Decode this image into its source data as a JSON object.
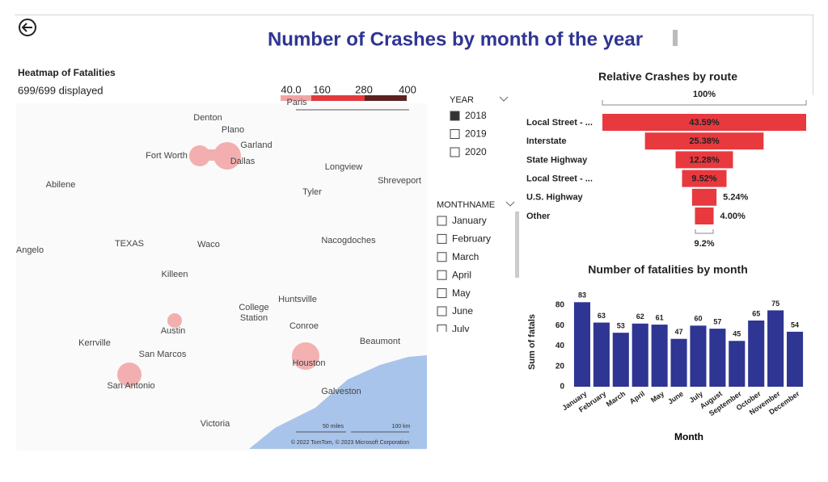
{
  "header": {
    "title": "Number of Crashes by month of the year"
  },
  "heatmap": {
    "title": "Heatmap of Fatalities",
    "subtitle": "699/699 displayed",
    "legend_labels": [
      "40.0",
      "160",
      "280",
      "400"
    ],
    "places": [
      "Paris",
      "Denton",
      "Plano",
      "Garland",
      "Fort Worth",
      "Dallas",
      "Longview",
      "Shreveport",
      "Abilene",
      "Tyler",
      "Angelo",
      "TEXAS",
      "Waco",
      "Nacogdoches",
      "Killeen",
      "Huntsville",
      "College",
      "Station",
      "Conroe",
      "Austin",
      "Kerrville",
      "San Marcos",
      "Beaumont",
      "Houston",
      "San Antonio",
      "Galveston",
      "Victoria"
    ],
    "scale_miles": "50 miles",
    "scale_km": "100 km",
    "copyright": "© 2022 TomTom, © 2023 Microsoft Corporation"
  },
  "slicers": {
    "year": {
      "title": "YEAR",
      "items": [
        "2018",
        "2019",
        "2020"
      ]
    },
    "month": {
      "title": "MONTHNAME",
      "items": [
        "January",
        "February",
        "March",
        "April",
        "May",
        "June",
        "July"
      ]
    }
  },
  "chart_data": [
    {
      "type": "funnel",
      "title": "Relative Crashes by route",
      "top_label": "100%",
      "bottom_label": "9.2%",
      "categories": [
        "Local Street - ...",
        "Interstate",
        "State Highway",
        "Local Street - ...",
        "U.S. Highway",
        "Other"
      ],
      "values": [
        43.59,
        25.38,
        12.28,
        9.52,
        5.24,
        4.0
      ],
      "value_labels": [
        "43.59%",
        "25.38%",
        "12.28%",
        "9.52%",
        "5.24%",
        "4.00%"
      ],
      "color": "#e8393f"
    },
    {
      "type": "bar",
      "title": "Number of fatalities by month",
      "x_label": "Month",
      "y_label": "Sum of fatals",
      "categories": [
        "January",
        "February",
        "March",
        "April",
        "May",
        "June",
        "July",
        "August",
        "September",
        "October",
        "November",
        "December"
      ],
      "values": [
        83,
        63,
        53,
        62,
        61,
        47,
        60,
        57,
        45,
        65,
        75,
        54
      ],
      "color": "#2e3592",
      "ylim": [
        0,
        88
      ],
      "yticks": [
        0,
        20,
        40,
        60,
        80
      ],
      "grid": false
    }
  ]
}
